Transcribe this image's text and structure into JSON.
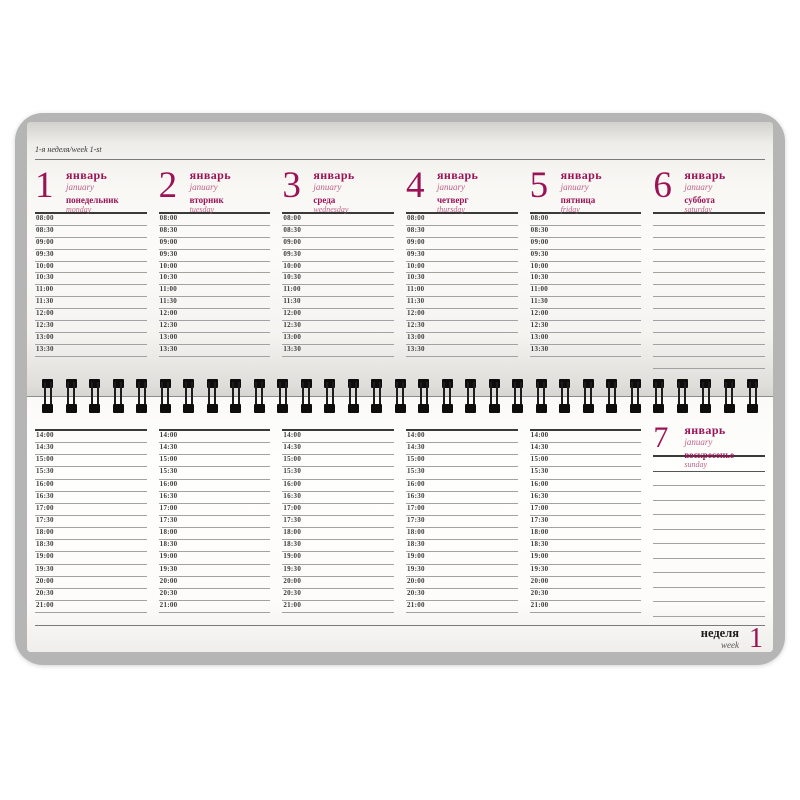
{
  "week_header": "1-я неделя/week 1-st",
  "footer": {
    "week_ru": "неделя",
    "week_en": "week",
    "week_number": "1"
  },
  "colors": {
    "accent": "#9c1355",
    "accent_light": "#c06389",
    "rule": "#a2a2a2",
    "dark_rule": "#3a3a3a",
    "frame": "#b5b5b5"
  },
  "days": [
    {
      "num": "1",
      "month_ru": "январь",
      "month_en": "january",
      "dow_ru": "понедельник",
      "dow_en": "monday"
    },
    {
      "num": "2",
      "month_ru": "январь",
      "month_en": "january",
      "dow_ru": "вторник",
      "dow_en": "tuesday"
    },
    {
      "num": "3",
      "month_ru": "январь",
      "month_en": "january",
      "dow_ru": "среда",
      "dow_en": "wednesday"
    },
    {
      "num": "4",
      "month_ru": "январь",
      "month_en": "january",
      "dow_ru": "четверг",
      "dow_en": "thursday"
    },
    {
      "num": "5",
      "month_ru": "январь",
      "month_en": "january",
      "dow_ru": "пятница",
      "dow_en": "friday"
    },
    {
      "num": "6",
      "month_ru": "январь",
      "month_en": "january",
      "dow_ru": "суббота",
      "dow_en": "saturday"
    },
    {
      "num": "7",
      "month_ru": "январь",
      "month_en": "january",
      "dow_ru": "воскресенье",
      "dow_en": "sunday"
    }
  ],
  "schedule": {
    "morning_times": [
      "08:00",
      "08:30",
      "09:00",
      "09:30",
      "10:00",
      "10:30",
      "11:00",
      "11:30",
      "12:00",
      "12:30",
      "13:00",
      "13:30"
    ],
    "afternoon_times": [
      "14:00",
      "14:30",
      "15:00",
      "15:30",
      "16:00",
      "16:30",
      "17:00",
      "17:30",
      "18:00",
      "18:30",
      "19:00",
      "19:30",
      "20:00",
      "20:30",
      "21:00"
    ]
  }
}
